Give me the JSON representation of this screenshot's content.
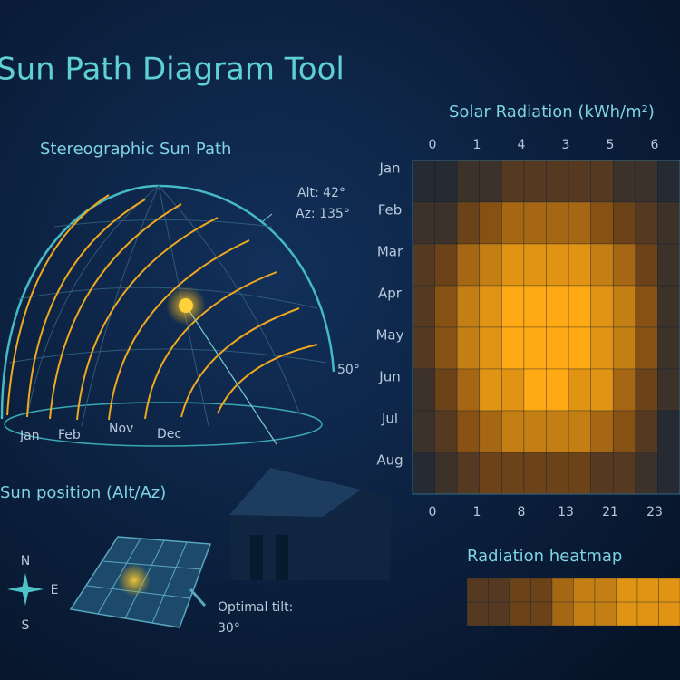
{
  "header": {
    "title": "Sun Path Diagram Tool"
  },
  "sun_path": {
    "title": "Stereographic Sun Path",
    "alt_label": "Alt: 42°",
    "az_label": "Az: 135°",
    "edge_label": "50°",
    "months": [
      "Jan",
      "Feb",
      "Nov",
      "Dec"
    ]
  },
  "position": {
    "title": "Sun position (Alt/Az)",
    "compass": [
      "N",
      "E",
      "S"
    ],
    "tilt_label": "Optimal tilt:",
    "tilt_value": "30°"
  },
  "heatmap": {
    "title": "Solar Radiation (kWh/m²)",
    "top_labels": [
      0,
      1,
      4,
      3,
      5,
      6
    ],
    "bottom_labels": [
      0,
      1,
      8,
      13,
      21,
      23
    ],
    "rows": [
      "Jan",
      "Feb",
      "Mar",
      "Apr",
      "May",
      "Jun",
      "Jul",
      "Aug"
    ],
    "vlim": [
      0,
      9
    ],
    "values": [
      [
        1,
        1,
        2,
        2,
        3,
        3,
        3,
        3,
        3,
        2,
        2,
        1
      ],
      [
        2,
        2,
        4,
        5,
        6,
        6,
        6,
        6,
        5,
        4,
        3,
        2
      ],
      [
        3,
        4,
        6,
        7,
        8,
        8,
        8,
        8,
        7,
        6,
        4,
        2
      ],
      [
        3,
        5,
        7,
        8,
        9,
        9,
        9,
        9,
        8,
        7,
        5,
        2
      ],
      [
        3,
        5,
        7,
        8,
        9,
        9,
        9,
        9,
        8,
        7,
        5,
        2
      ],
      [
        2,
        4,
        6,
        8,
        8,
        9,
        9,
        8,
        8,
        6,
        4,
        2
      ],
      [
        2,
        3,
        5,
        6,
        7,
        7,
        7,
        7,
        6,
        5,
        3,
        1
      ],
      [
        1,
        2,
        3,
        4,
        4,
        4,
        4,
        4,
        3,
        3,
        2,
        1
      ]
    ]
  },
  "strip": {
    "title": "Radiation heatmap",
    "values": [
      3,
      3,
      4,
      4,
      6,
      7,
      7,
      8,
      8,
      8
    ]
  }
}
